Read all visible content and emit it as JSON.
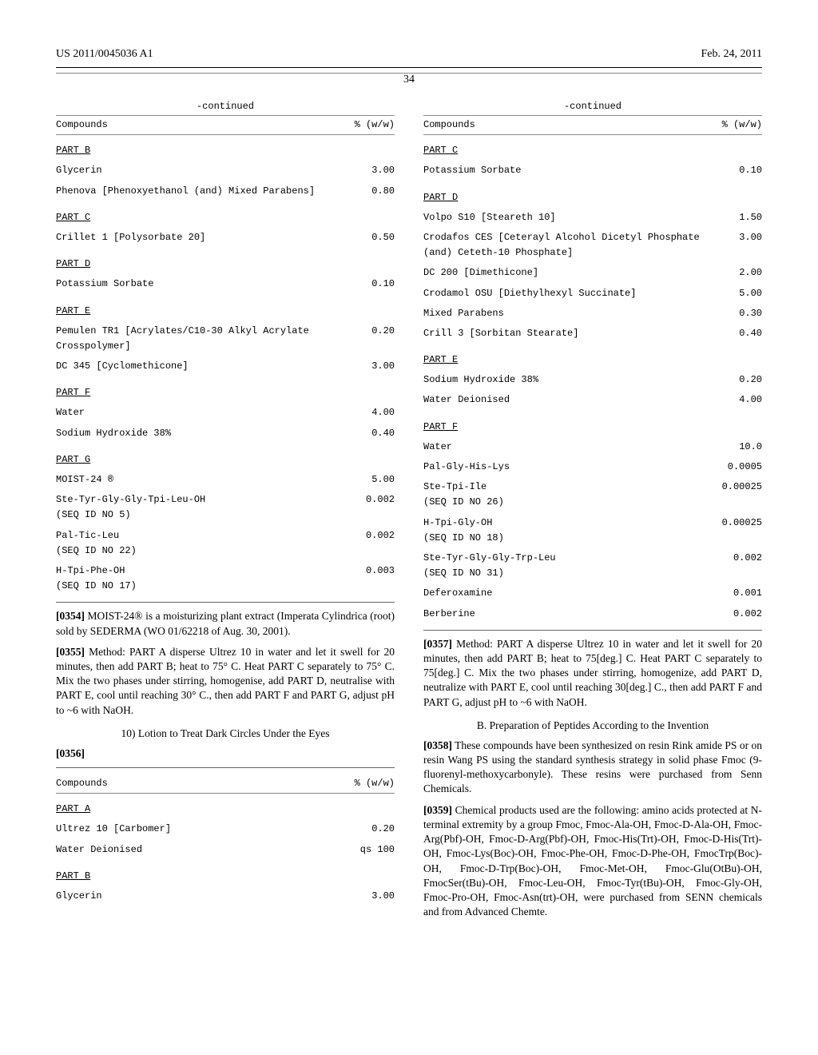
{
  "header": {
    "left": "US 2011/0045036 A1",
    "right": "Feb. 24, 2011"
  },
  "page_number": "34",
  "continued_label": "-continued",
  "col_headers": {
    "left": "Compounds",
    "right": "% (w/w)"
  },
  "table1": {
    "rows": [
      {
        "type": "part",
        "label": "PART B"
      },
      {
        "type": "row",
        "compound": "Glycerin",
        "value": "3.00"
      },
      {
        "type": "row",
        "compound": "Phenova [Phenoxyethanol (and) Mixed Parabens]",
        "value": "0.80"
      },
      {
        "type": "part",
        "label": "PART C"
      },
      {
        "type": "row",
        "compound": "Crillet 1 [Polysorbate 20]",
        "value": "0.50"
      },
      {
        "type": "part",
        "label": "PART D"
      },
      {
        "type": "row",
        "compound": "Potassium Sorbate",
        "value": "0.10"
      },
      {
        "type": "part",
        "label": "PART E"
      },
      {
        "type": "row",
        "compound": "Pemulen TR1 [Acrylates/C10-30 Alkyl Acrylate Crosspolymer]",
        "value": "0.20"
      },
      {
        "type": "row",
        "compound": "DC 345 [Cyclomethicone]",
        "value": "3.00"
      },
      {
        "type": "part",
        "label": "PART F"
      },
      {
        "type": "row",
        "compound": "Water",
        "value": "4.00"
      },
      {
        "type": "row",
        "compound": "Sodium Hydroxide 38%",
        "value": "0.40"
      },
      {
        "type": "part",
        "label": "PART G"
      },
      {
        "type": "row",
        "compound": "MOIST-24 ®",
        "value": "5.00"
      },
      {
        "type": "row",
        "compound": "Ste-Tyr-Gly-Gly-Tpi-Leu-OH\n(SEQ ID NO 5)",
        "value": "0.002"
      },
      {
        "type": "row",
        "compound": "Pal-Tic-Leu\n(SEQ ID NO 22)",
        "value": "0.002"
      },
      {
        "type": "row",
        "compound": "H-Tpi-Phe-OH\n(SEQ ID NO 17)",
        "value": "0.003"
      }
    ]
  },
  "para0354": {
    "num": "[0354]",
    "text": "  MOIST-24® is a moisturizing plant extract (Imperata Cylindrica (root) sold by SEDERMA (WO 01/62218 of Aug. 30, 2001)."
  },
  "para0355": {
    "num": "[0355]",
    "text": "  Method: PART A disperse Ultrez 10 in water and let it swell for 20 minutes, then add PART B; heat to 75° C. Heat PART C separately to 75° C. Mix the two phases under stirring, homogenise, add PART D, neutralise with PART E, cool until reaching 30° C., then add PART F and PART G, adjust pH to ~6 with NaOH."
  },
  "sect10": "10) Lotion to Treat Dark Circles Under the Eyes",
  "para0356num": "[0356]",
  "table2": {
    "rows": [
      {
        "type": "part",
        "label": "PART A"
      },
      {
        "type": "row",
        "compound": "Ultrez 10 [Carbomer]",
        "value": "0.20"
      },
      {
        "type": "row",
        "compound": "Water Deionised",
        "value": "qs 100"
      },
      {
        "type": "part",
        "label": "PART B"
      },
      {
        "type": "row",
        "compound": "Glycerin",
        "value": "3.00"
      }
    ]
  },
  "table3": {
    "rows": [
      {
        "type": "part",
        "label": "PART C"
      },
      {
        "type": "row",
        "compound": "Potassium Sorbate",
        "value": "0.10"
      },
      {
        "type": "part",
        "label": "PART D"
      },
      {
        "type": "row",
        "compound": "Volpo S10 [Steareth 10]",
        "value": "1.50"
      },
      {
        "type": "row",
        "compound": "Crodafos CES [Ceterayl Alcohol Dicetyl Phosphate (and) Ceteth-10 Phosphate]",
        "value": "3.00"
      },
      {
        "type": "row",
        "compound": "DC 200 [Dimethicone]",
        "value": "2.00"
      },
      {
        "type": "row",
        "compound": "Crodamol OSU [Diethylhexyl Succinate]",
        "value": "5.00"
      },
      {
        "type": "row",
        "compound": "Mixed Parabens",
        "value": "0.30"
      },
      {
        "type": "row",
        "compound": "Crill 3 [Sorbitan Stearate]",
        "value": "0.40"
      },
      {
        "type": "part",
        "label": "PART E"
      },
      {
        "type": "row",
        "compound": "Sodium Hydroxide 38%",
        "value": "0.20"
      },
      {
        "type": "row",
        "compound": "Water Deionised",
        "value": "4.00"
      },
      {
        "type": "part",
        "label": "PART F"
      },
      {
        "type": "row",
        "compound": "Water",
        "value": "10.0"
      },
      {
        "type": "row",
        "compound": "Pal-Gly-His-Lys",
        "value": "0.0005"
      },
      {
        "type": "row",
        "compound": "Ste-Tpi-Ile\n(SEQ ID NO 26)",
        "value": "0.00025"
      },
      {
        "type": "row",
        "compound": "H-Tpi-Gly-OH\n(SEQ ID NO 18)",
        "value": "0.00025"
      },
      {
        "type": "row",
        "compound": "Ste-Tyr-Gly-Gly-Trp-Leu\n(SEQ ID NO 31)",
        "value": "0.002"
      },
      {
        "type": "row",
        "compound": "Deferoxamine",
        "value": "0.001"
      },
      {
        "type": "row",
        "compound": "Berberine",
        "value": "0.002"
      }
    ]
  },
  "para0357": {
    "num": "[0357]",
    "text": "  Method: PART A disperse Ultrez 10 in water and let it swell for 20 minutes, then add PART B; heat to 75[deg.] C. Heat PART C separately to 75[deg.] C. Mix the two phases under stirring, homogenize, add PART D, neutralize with PART E, cool until reaching 30[deg.] C., then add PART F and PART G, adjust pH to ~6 with NaOH."
  },
  "sectionB": "B. Preparation of Peptides According to the Invention",
  "para0358": {
    "num": "[0358]",
    "text": "  These compounds have been synthesized on resin Rink amide PS or on resin Wang PS using the standard synthesis strategy in solid phase Fmoc (9-fluorenyl-methoxycarbonyle). These resins were purchased from Senn Chemicals."
  },
  "para0359": {
    "num": "[0359]",
    "text": "  Chemical products used are the following: amino acids protected at N-terminal extremity by a group Fmoc, Fmoc-Ala-OH, Fmoc-D-Ala-OH, Fmoc-Arg(Pbf)-OH, Fmoc-D-Arg(Pbf)-OH, Fmoc-His(Trt)-OH, Fmoc-D-His(Trt)-OH, Fmoc-Lys(Boc)-OH, Fmoc-Phe-OH, Fmoc-D-Phe-OH, FmocTrp(Boc)-OH, Fmoc-D-Trp(Boc)-OH, Fmoc-Met-OH, Fmoc-Glu(OtBu)-OH, FmocSer(tBu)-OH, Fmoc-Leu-OH, Fmoc-Tyr(tBu)-OH, Fmoc-Gly-OH, Fmoc-Pro-OH, Fmoc-Asn(trt)-OH, were purchased from SENN chemicals and from Advanced Chemte."
  }
}
